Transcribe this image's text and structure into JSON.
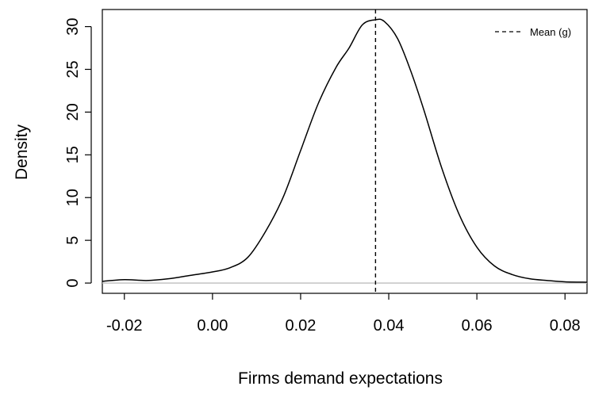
{
  "chart_data": {
    "type": "line",
    "title": "",
    "xlabel": "Firms demand expectations",
    "ylabel": "Density",
    "xlim": [
      -0.025,
      0.085
    ],
    "ylim": [
      -1.2,
      32
    ],
    "x_ticks": [
      -0.02,
      0.0,
      0.02,
      0.04,
      0.06,
      0.08
    ],
    "x_tick_labels": [
      "-0.02",
      "0.00",
      "0.02",
      "0.04",
      "0.06",
      "0.08"
    ],
    "y_ticks": [
      0,
      5,
      10,
      15,
      20,
      25,
      30
    ],
    "y_tick_labels": [
      "0",
      "5",
      "10",
      "15",
      "20",
      "25",
      "30"
    ],
    "grid": false,
    "baseline": {
      "y": 0,
      "color": "#bebebe"
    },
    "series": [
      {
        "color": "#000000",
        "style": "solid",
        "x": [
          -0.025,
          -0.02,
          -0.015,
          -0.01,
          -0.005,
          0.0,
          0.004,
          0.008,
          0.012,
          0.016,
          0.02,
          0.024,
          0.028,
          0.031,
          0.034,
          0.037,
          0.039,
          0.042,
          0.045,
          0.048,
          0.052,
          0.056,
          0.06,
          0.064,
          0.068,
          0.072,
          0.076,
          0.08,
          0.085
        ],
        "y": [
          0.2,
          0.4,
          0.3,
          0.5,
          0.9,
          1.3,
          1.8,
          3.0,
          6.0,
          10.0,
          15.5,
          21.0,
          25.2,
          27.5,
          30.2,
          30.8,
          30.6,
          28.6,
          24.8,
          20.2,
          13.5,
          8.0,
          4.2,
          2.0,
          1.0,
          0.5,
          0.3,
          0.15,
          0.1
        ]
      }
    ],
    "vlines": [
      {
        "x": 0.037,
        "style": "dashed",
        "color": "#000000",
        "label": "Mean (g)"
      }
    ],
    "legend": {
      "position": "top-right",
      "entries": [
        "Mean (g)"
      ]
    }
  }
}
